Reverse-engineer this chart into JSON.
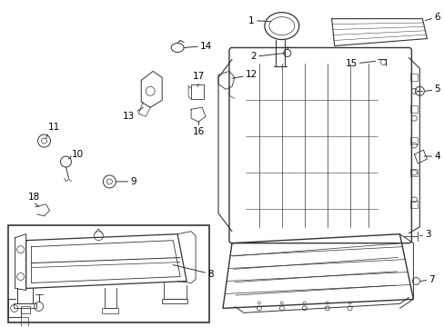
{
  "background_color": "#ffffff",
  "line_color": "#333333",
  "line_width": 0.7,
  "font_size": 7.5,
  "text_color": "#000000",
  "figure_width": 4.89,
  "figure_height": 3.6,
  "dpi": 100
}
